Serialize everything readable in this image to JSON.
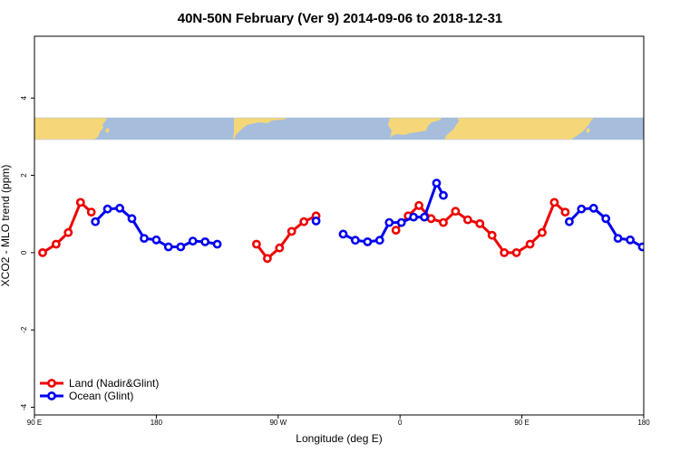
{
  "chart_data": {
    "type": "line",
    "title": "40N-50N February (Ver 9)   2014-09-06 to 2018-12-31",
    "xlabel": "Longitude (deg E)",
    "ylabel": "XCO2 - MLO trend (ppm)",
    "xlim": [
      90,
      540
    ],
    "ylim": [
      -4.2,
      5.6
    ],
    "x_ticks": [
      {
        "value": 90,
        "label": "90 E"
      },
      {
        "value": 180,
        "label": "180"
      },
      {
        "value": 270,
        "label": "90 W"
      },
      {
        "value": 360,
        "label": "0"
      },
      {
        "value": 450,
        "label": "90 E"
      },
      {
        "value": 540,
        "label": "180"
      }
    ],
    "y_ticks": [
      {
        "value": -4,
        "label": "-4"
      },
      {
        "value": -2,
        "label": "-2"
      },
      {
        "value": 0,
        "label": "0"
      },
      {
        "value": 2,
        "label": "2"
      },
      {
        "value": 4,
        "label": "4"
      }
    ],
    "legend_position": "bottom-left",
    "map_strip": {
      "colors": {
        "land": "#f5d77a",
        "ocean": "#a6bddb"
      }
    },
    "series": [
      {
        "name": "Land (Nadir&Glint)",
        "color": "#ee0000",
        "segments": [
          [
            [
              96,
              0.0
            ],
            [
              106,
              0.22
            ],
            [
              115,
              0.52
            ],
            [
              124,
              1.3
            ],
            [
              132,
              1.05
            ]
          ],
          [
            [
              254,
              0.22
            ],
            [
              262,
              -0.15
            ],
            [
              271,
              0.12
            ],
            [
              280,
              0.55
            ],
            [
              289,
              0.8
            ],
            [
              298,
              0.95
            ]
          ],
          [
            [
              357,
              0.58
            ],
            [
              366,
              0.95
            ],
            [
              374,
              1.22
            ],
            [
              383,
              0.88
            ],
            [
              392,
              0.78
            ],
            [
              401,
              1.07
            ],
            [
              410,
              0.85
            ],
            [
              419,
              0.75
            ],
            [
              428,
              0.45
            ],
            [
              437,
              0.0
            ],
            [
              446,
              0.0
            ],
            [
              456,
              0.22
            ],
            [
              465,
              0.52
            ],
            [
              474,
              1.3
            ],
            [
              482,
              1.05
            ]
          ]
        ]
      },
      {
        "name": "Ocean (Glint)",
        "color": "#0000ee",
        "segments": [
          [
            [
              135,
              0.8
            ],
            [
              144,
              1.13
            ],
            [
              153,
              1.15
            ],
            [
              162,
              0.88
            ],
            [
              171,
              0.37
            ],
            [
              180,
              0.33
            ],
            [
              189,
              0.15
            ],
            [
              198,
              0.15
            ],
            [
              207,
              0.3
            ],
            [
              216,
              0.28
            ],
            [
              225,
              0.22
            ]
          ],
          [
            [
              298,
              0.82
            ]
          ],
          [
            [
              318,
              0.48
            ],
            [
              327,
              0.32
            ],
            [
              336,
              0.28
            ],
            [
              345,
              0.32
            ],
            [
              352,
              0.78
            ],
            [
              361,
              0.78
            ],
            [
              370,
              0.92
            ],
            [
              378,
              0.92
            ],
            [
              387,
              1.8
            ],
            [
              392,
              1.48
            ]
          ],
          [
            [
              485,
              0.8
            ],
            [
              494,
              1.13
            ],
            [
              503,
              1.15
            ],
            [
              512,
              0.88
            ],
            [
              521,
              0.37
            ],
            [
              530,
              0.33
            ],
            [
              539,
              0.15
            ],
            [
              548,
              0.15
            ]
          ]
        ]
      }
    ]
  }
}
